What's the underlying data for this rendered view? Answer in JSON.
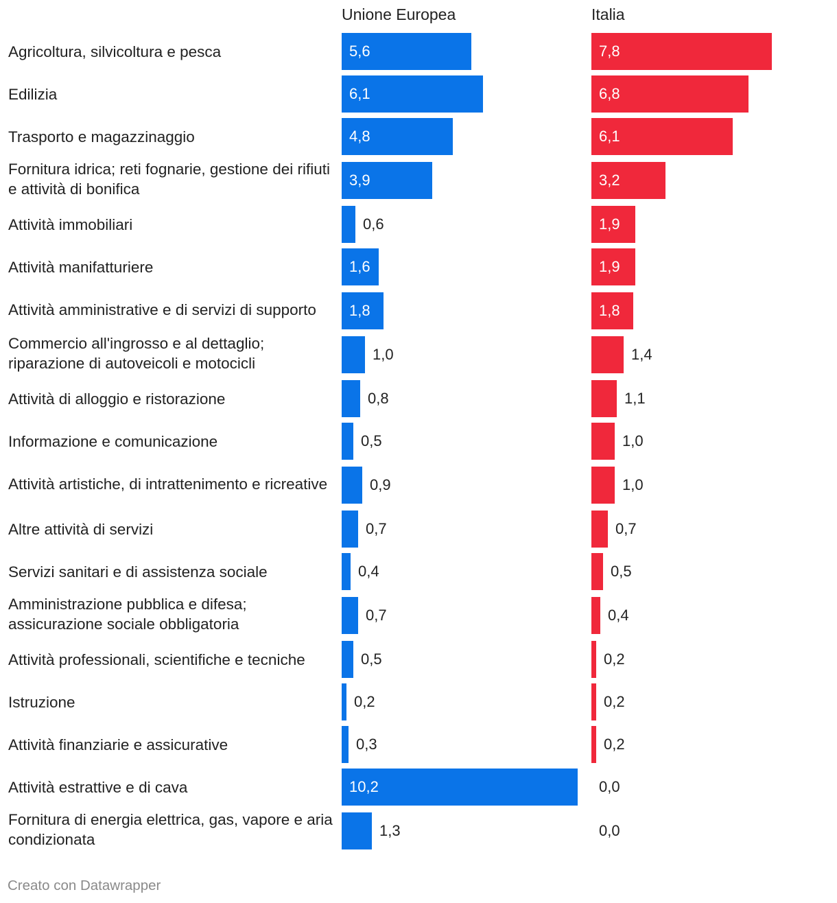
{
  "chart_data": {
    "type": "bar",
    "orientation": "horizontal",
    "series": [
      {
        "name": "Unione Europea",
        "color": "#0a74e8",
        "values": [
          5.6,
          6.1,
          4.8,
          3.9,
          0.6,
          1.6,
          1.8,
          1.0,
          0.8,
          0.5,
          0.9,
          0.7,
          0.4,
          0.7,
          0.5,
          0.2,
          0.3,
          10.2,
          1.3
        ],
        "labels": [
          "5,6",
          "6,1",
          "4,8",
          "3,9",
          "0,6",
          "1,6",
          "1,8",
          "1,0",
          "0,8",
          "0,5",
          "0,9",
          "0,7",
          "0,4",
          "0,7",
          "0,5",
          "0,2",
          "0,3",
          "10,2",
          "1,3"
        ]
      },
      {
        "name": "Italia",
        "color": "#f0283b",
        "values": [
          7.8,
          6.8,
          6.1,
          3.2,
          1.9,
          1.9,
          1.8,
          1.4,
          1.1,
          1.0,
          1.0,
          0.7,
          0.5,
          0.4,
          0.2,
          0.2,
          0.2,
          0.0,
          0.0
        ],
        "labels": [
          "7,8",
          "6,8",
          "6,1",
          "3,2",
          "1,9",
          "1,9",
          "1,8",
          "1,4",
          "1,1",
          "1,0",
          "1,0",
          "0,7",
          "0,5",
          "0,4",
          "0,2",
          "0,2",
          "0,2",
          "0,0",
          "0,0"
        ]
      }
    ],
    "categories": [
      "Agricoltura, silvicoltura e pesca",
      "Edilizia",
      "Trasporto e magazzinaggio",
      "Fornitura idrica; reti fognarie, gestione dei rifiuti e attività di bonifica",
      "Attività immobiliari",
      "Attività manifatturiere",
      "Attività amministrative e di servizi di supporto",
      "Commercio all'ingrosso e al dettaglio; riparazione di autoveicoli e motocicli",
      "Attività di alloggio e ristorazione",
      "Informazione e comunicazione",
      "Attività artistiche, di intrattenimento e ricreative",
      "Altre attività di servizi",
      "Servizi sanitari e di assistenza sociale",
      "Amministrazione pubblica e difesa; assicurazione sociale obbligatoria",
      "Attività professionali, scientifiche e tecniche",
      "Istruzione",
      "Attività finanziarie e assicurative",
      "Attività estrattive e di cava",
      "Fornitura di energia elettrica, gas, vapore e aria condizionata"
    ],
    "xlim": [
      0,
      10.2
    ],
    "grid": false,
    "legend": "column headers"
  },
  "footer": {
    "credit": "Creato con Datawrapper"
  }
}
